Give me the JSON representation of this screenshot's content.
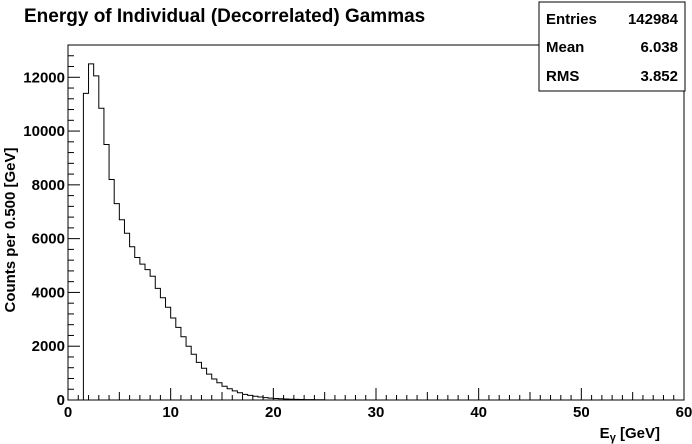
{
  "chart_data": {
    "type": "histogram",
    "title": "Energy of Individual (Decorrelated) Gammas",
    "xlabel": "E_γ [GeV]",
    "xlabel_main": "E",
    "xlabel_sub": "γ",
    "xlabel_unit": " [GeV]",
    "ylabel": "Counts per 0.500 [GeV]",
    "xlim": [
      0,
      60
    ],
    "ylim": [
      0,
      13200
    ],
    "bin_width": 0.5,
    "x_ticks": [
      0,
      10,
      20,
      30,
      40,
      50,
      60
    ],
    "y_ticks": [
      0,
      2000,
      4000,
      6000,
      8000,
      10000,
      12000
    ],
    "x_tick_labels": [
      "0",
      "10",
      "20",
      "30",
      "40",
      "50",
      "60"
    ],
    "y_tick_labels": [
      "0",
      "2000",
      "4000",
      "6000",
      "8000",
      "10000",
      "12000"
    ],
    "grid": false,
    "series": [
      {
        "x_start": 0,
        "values": [
          0,
          0,
          0,
          11400,
          12500,
          12050,
          10850,
          9500,
          8200,
          7300,
          6700,
          6200,
          5700,
          5300,
          5050,
          4850,
          4600,
          4150,
          3800,
          3450,
          3050,
          2700,
          2350,
          2000,
          1700,
          1400,
          1180,
          960,
          780,
          640,
          510,
          420,
          340,
          270,
          210,
          170,
          140,
          110,
          90,
          70,
          55,
          45,
          36,
          30,
          24,
          20,
          16,
          13,
          10,
          8
        ]
      }
    ],
    "stats": {
      "entries_label": "Entries",
      "entries_value": "142984",
      "mean_label": "Mean",
      "mean_value": "6.038",
      "rms_label": "RMS",
      "rms_value": "3.852"
    }
  }
}
